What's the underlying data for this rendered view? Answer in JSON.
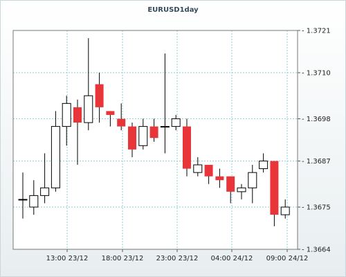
{
  "chart_data": {
    "type": "candlestick",
    "title": "EURUSD1day",
    "ylim": [
      1.3664,
      1.3721
    ],
    "y_ticks": [
      "1.3721",
      "1.3710",
      "1.3698",
      "1.3687",
      "1.3675",
      "1.3664"
    ],
    "x_ticks": [
      "13:00 23/12",
      "18:00 23/12",
      "23:00 23/12",
      "04:00 24/12",
      "09:00 24/12"
    ],
    "grid": true,
    "colors": {
      "up_fill": "#ffffff",
      "down_fill": "#e8353a",
      "stroke": "#000000",
      "grid": "#8ccfd6"
    },
    "candles": [
      {
        "o": 1.3677,
        "h": 1.3684,
        "l": 1.3672,
        "c": 1.3677
      },
      {
        "o": 1.3675,
        "h": 1.3682,
        "l": 1.3673,
        "c": 1.3678
      },
      {
        "o": 1.3678,
        "h": 1.3689,
        "l": 1.3676,
        "c": 1.368
      },
      {
        "o": 1.368,
        "h": 1.37,
        "l": 1.3679,
        "c": 1.3696
      },
      {
        "o": 1.3696,
        "h": 1.3704,
        "l": 1.3691,
        "c": 1.3702
      },
      {
        "o": 1.3701,
        "h": 1.3703,
        "l": 1.3686,
        "c": 1.3697
      },
      {
        "o": 1.3697,
        "h": 1.3719,
        "l": 1.3695,
        "c": 1.3704
      },
      {
        "o": 1.3707,
        "h": 1.371,
        "l": 1.3697,
        "c": 1.3701
      },
      {
        "o": 1.37,
        "h": 1.37,
        "l": 1.3696,
        "c": 1.3699
      },
      {
        "o": 1.3698,
        "h": 1.3702,
        "l": 1.3695,
        "c": 1.3696
      },
      {
        "o": 1.3696,
        "h": 1.3697,
        "l": 1.3688,
        "c": 1.369
      },
      {
        "o": 1.3691,
        "h": 1.3698,
        "l": 1.369,
        "c": 1.3696
      },
      {
        "o": 1.3696,
        "h": 1.3698,
        "l": 1.3692,
        "c": 1.3693
      },
      {
        "o": 1.3696,
        "h": 1.3715,
        "l": 1.3689,
        "c": 1.3696
      },
      {
        "o": 1.3696,
        "h": 1.3699,
        "l": 1.3695,
        "c": 1.3698
      },
      {
        "o": 1.3696,
        "h": 1.3698,
        "l": 1.3683,
        "c": 1.3685
      },
      {
        "o": 1.3684,
        "h": 1.3688,
        "l": 1.3683,
        "c": 1.3686
      },
      {
        "o": 1.3686,
        "h": 1.3686,
        "l": 1.3681,
        "c": 1.3683
      },
      {
        "o": 1.3683,
        "h": 1.3685,
        "l": 1.368,
        "c": 1.3682
      },
      {
        "o": 1.3683,
        "h": 1.3683,
        "l": 1.3676,
        "c": 1.3679
      },
      {
        "o": 1.3679,
        "h": 1.3681,
        "l": 1.3677,
        "c": 1.368
      },
      {
        "o": 1.368,
        "h": 1.3686,
        "l": 1.3676,
        "c": 1.3684
      },
      {
        "o": 1.3685,
        "h": 1.3689,
        "l": 1.3684,
        "c": 1.3687
      },
      {
        "o": 1.3687,
        "h": 1.3687,
        "l": 1.367,
        "c": 1.3673
      },
      {
        "o": 1.3673,
        "h": 1.3677,
        "l": 1.3672,
        "c": 1.3675
      }
    ]
  }
}
